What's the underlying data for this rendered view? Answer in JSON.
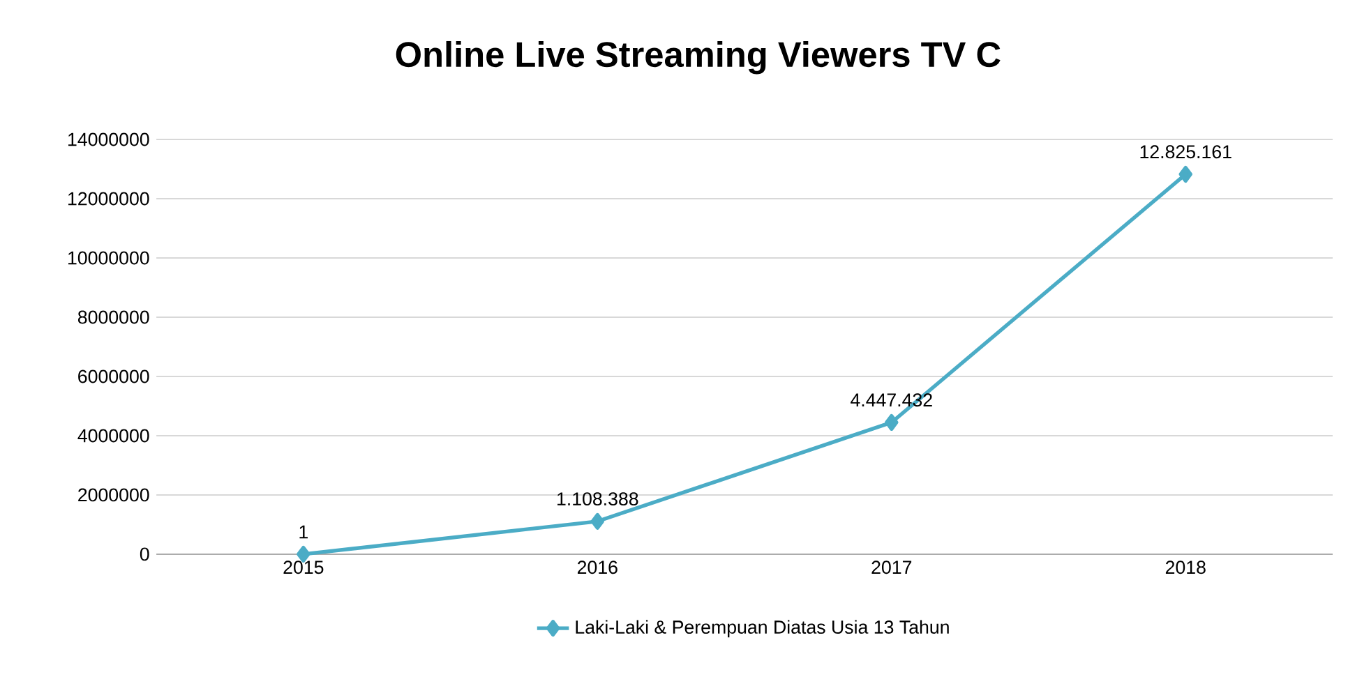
{
  "chart_data": {
    "type": "line",
    "title": "Online Live Streaming Viewers TV C",
    "categories": [
      "2015",
      "2016",
      "2017",
      "2018"
    ],
    "series": [
      {
        "name": "Laki-Laki & Perempuan Diatas Usia 13 Tahun",
        "color": "#4bacc6",
        "values": [
          1,
          1108388,
          4447432,
          12825161
        ],
        "value_labels": [
          "1",
          "1.108.388",
          "4.447.432",
          "12.825.161"
        ]
      }
    ],
    "ylim": [
      0,
      14000000
    ],
    "yticks": [
      0,
      2000000,
      4000000,
      6000000,
      8000000,
      10000000,
      12000000,
      14000000
    ],
    "grid": "y",
    "legend": "bottom",
    "marker": "diamond",
    "line_style": "solid"
  }
}
